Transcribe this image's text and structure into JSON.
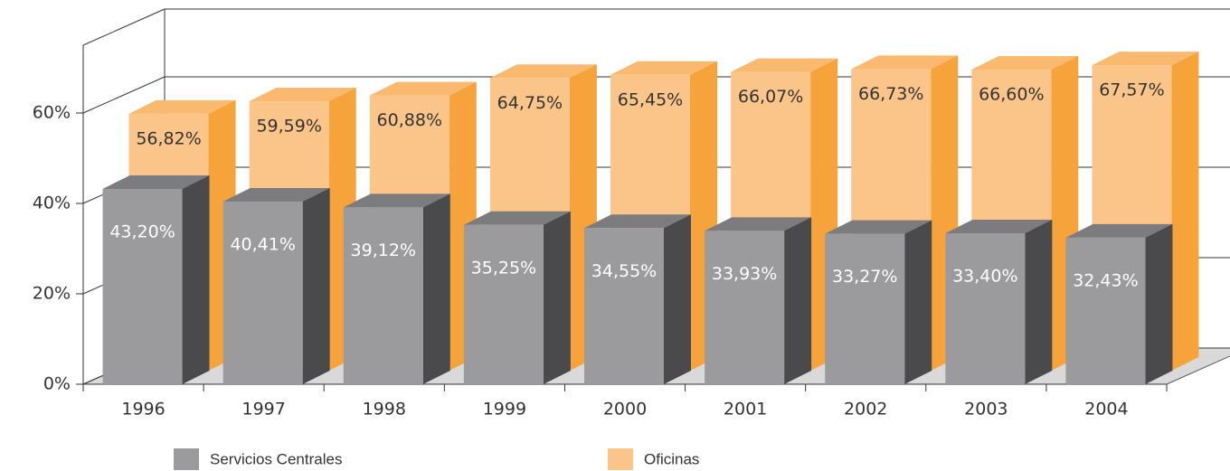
{
  "chart_data": {
    "type": "bar3d",
    "categories": [
      "1996",
      "1997",
      "1998",
      "1999",
      "2000",
      "2001",
      "2002",
      "2003",
      "2004"
    ],
    "series": [
      {
        "name": "Servicios Centrales",
        "color": "#9b9b9d",
        "values": [
          43.2,
          40.41,
          39.12,
          35.25,
          34.55,
          33.93,
          33.27,
          33.4,
          32.43
        ],
        "value_labels": [
          "43,20%",
          "40,41%",
          "39,12%",
          "35,25%",
          "34,55%",
          "33,93%",
          "33,27%",
          "33,40%",
          "32,43%"
        ]
      },
      {
        "name": "Oficinas",
        "color": "#fbc58a",
        "values": [
          56.82,
          59.59,
          60.88,
          64.75,
          65.45,
          66.07,
          66.73,
          66.6,
          67.57
        ],
        "value_labels": [
          "56,82%",
          "59,59%",
          "60,88%",
          "64,75%",
          "65,45%",
          "66,07%",
          "66,73%",
          "66,60%",
          "67,57%"
        ]
      }
    ],
    "ylim": [
      0,
      75
    ],
    "yticks": [
      {
        "value": 0,
        "label": "0%"
      },
      {
        "value": 20,
        "label": "20%"
      },
      {
        "value": 40,
        "label": "40%"
      },
      {
        "value": 60,
        "label": "60%"
      }
    ],
    "grid": true
  }
}
